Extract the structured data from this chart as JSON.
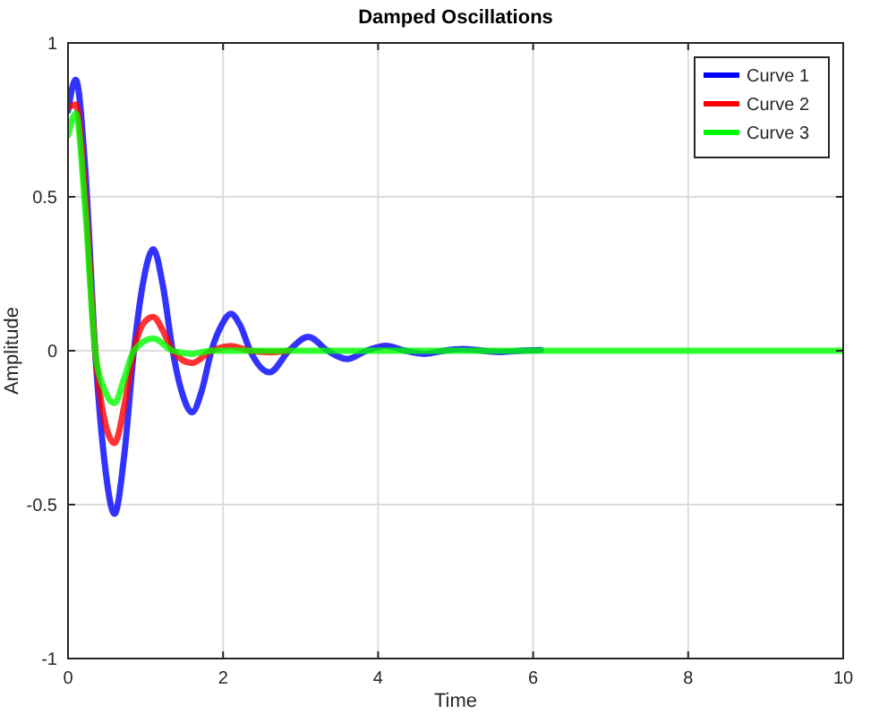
{
  "chart_data": {
    "type": "line",
    "title": "Damped Oscillations",
    "xlabel": "Time",
    "ylabel": "Amplitude",
    "xlim": [
      0,
      10
    ],
    "ylim": [
      -1,
      1
    ],
    "xticks": [
      0,
      2,
      4,
      6,
      8,
      10
    ],
    "yticks": [
      -1,
      -0.5,
      0,
      0.5,
      1
    ],
    "grid": true,
    "legend": "top right",
    "line_style": "solid",
    "marker": "none",
    "series": [
      {
        "name": "Curve 1",
        "color": "#0000ff",
        "x": [
          0,
          0.1,
          0.225,
          0.35,
          0.475,
          0.6,
          0.725,
          0.85,
          0.975,
          1.1,
          1.225,
          1.35,
          1.475,
          1.6,
          1.725,
          1.85,
          1.975,
          2.1,
          2.225,
          2.35,
          2.6,
          2.85,
          3.1,
          3.35,
          3.6,
          3.85,
          4.1,
          4.35,
          4.6,
          4.85,
          5.1,
          5.35,
          5.6,
          5.85,
          6.1
        ],
        "values": [
          0.78,
          0.88,
          0.58,
          0,
          -0.37,
          -0.53,
          -0.34,
          0,
          0.23,
          0.33,
          0.21,
          0,
          -0.14,
          -0.2,
          -0.13,
          0,
          0.08,
          0.12,
          0.08,
          0,
          -0.07,
          0,
          0.045,
          0,
          -0.027,
          0,
          0.016,
          0,
          -0.01,
          0,
          0.006,
          0,
          -0.004,
          0,
          0.002
        ]
      },
      {
        "name": "Curve 2",
        "color": "#ff0000",
        "x": [
          0,
          0.1,
          0.225,
          0.35,
          0.475,
          0.6,
          0.725,
          0.85,
          0.975,
          1.1,
          1.225,
          1.35,
          1.6,
          1.85,
          2.1,
          2.35,
          2.6,
          2.85
        ],
        "values": [
          0.79,
          0.8,
          0.5,
          0,
          -0.23,
          -0.3,
          -0.18,
          0,
          0.09,
          0.11,
          0.065,
          0,
          -0.04,
          0,
          0.015,
          0,
          -0.005,
          0
        ]
      },
      {
        "name": "Curve 3",
        "color": "#00ff00",
        "x": [
          0,
          0.1,
          0.225,
          0.35,
          0.475,
          0.6,
          0.725,
          0.85,
          1.1,
          1.35,
          1.6,
          1.85,
          3,
          5,
          7,
          10
        ],
        "values": [
          0.7,
          0.77,
          0.45,
          0,
          -0.13,
          -0.17,
          -0.09,
          0,
          0.04,
          0,
          -0.01,
          0,
          0,
          0,
          0,
          0
        ]
      }
    ]
  }
}
